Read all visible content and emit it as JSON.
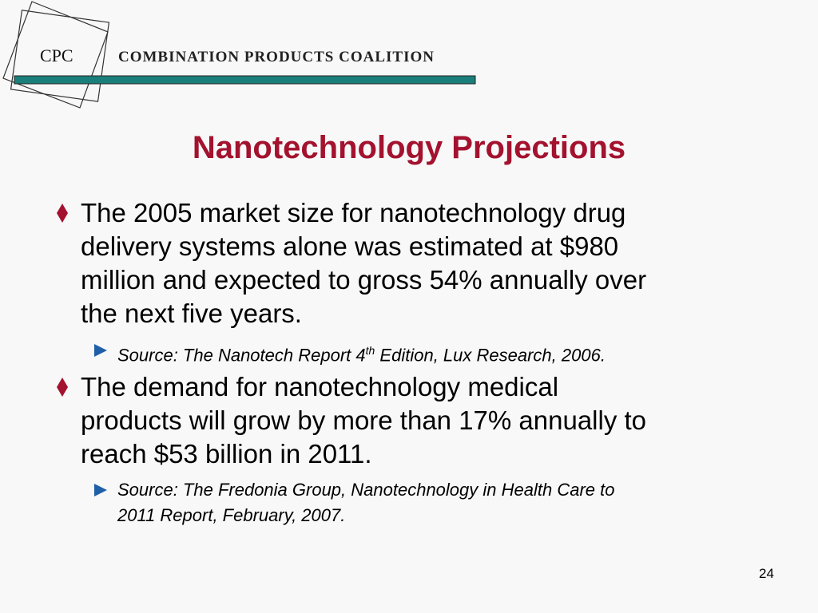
{
  "header": {
    "logo": "CPC",
    "organization": "COMBINATION PRODUCTS COALITION"
  },
  "title": "Nanotechnology Projections",
  "bullets": [
    {
      "lines": [
        "The 2005 market size for nanotechnology drug",
        "delivery systems alone was estimated at $980",
        "million and expected to gross 54% annually over",
        "the next five years."
      ],
      "source": {
        "lines": [
          [
            "Source:  The Nanotech Report 4",
            "th",
            " Edition, Lux Research, 2006."
          ]
        ]
      }
    },
    {
      "lines": [
        "The demand for nanotechnology medical",
        "products will grow by more than 17% annually to",
        "reach $53 billion in 2011."
      ],
      "source": {
        "lines": [
          [
            "Source:  The Fredonia Group, Nanotechnology in Health Care to"
          ],
          [
            "2011 Report, February, 2007."
          ]
        ]
      }
    }
  ],
  "page_number": "24"
}
